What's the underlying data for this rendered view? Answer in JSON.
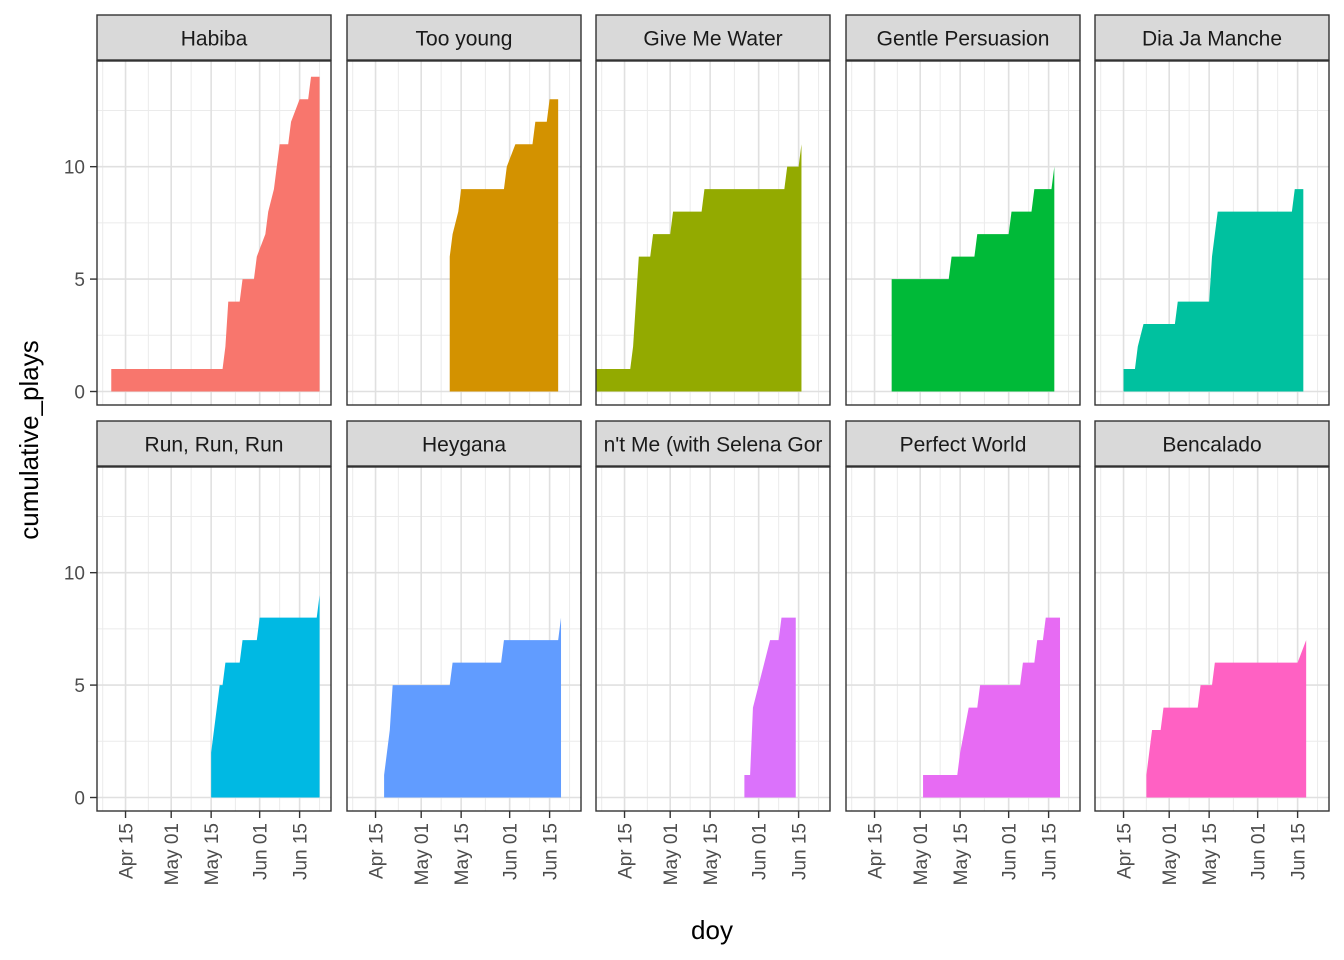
{
  "chart_data": {
    "type": "area",
    "xlabel": "doy",
    "ylabel": "cumulative_plays",
    "x_tick_labels": [
      "Apr 15",
      "May 01",
      "May 15",
      "Jun 01",
      "Jun 15"
    ],
    "x_tick_dates": [
      "2023-04-15",
      "2023-05-01",
      "2023-05-15",
      "2023-06-01",
      "2023-06-15"
    ],
    "xlim": [
      "2023-04-05",
      "2023-06-26"
    ],
    "y_ticks": [
      0,
      5,
      10
    ],
    "ylim": [
      -0.6,
      14.7
    ],
    "grid": true,
    "legend": "none",
    "facets": [
      {
        "title": "Habiba",
        "color": "#F8766D",
        "points": [
          [
            "2023-04-10",
            1
          ],
          [
            "2023-05-19",
            1
          ],
          [
            "2023-05-20",
            2
          ],
          [
            "2023-05-21",
            4
          ],
          [
            "2023-05-25",
            4
          ],
          [
            "2023-05-26",
            5
          ],
          [
            "2023-05-30",
            5
          ],
          [
            "2023-05-31",
            6
          ],
          [
            "2023-06-03",
            7
          ],
          [
            "2023-06-04",
            8
          ],
          [
            "2023-06-06",
            9
          ],
          [
            "2023-06-07",
            10
          ],
          [
            "2023-06-08",
            11
          ],
          [
            "2023-06-11",
            11
          ],
          [
            "2023-06-12",
            12
          ],
          [
            "2023-06-15",
            13
          ],
          [
            "2023-06-18",
            13
          ],
          [
            "2023-06-19",
            14
          ],
          [
            "2023-06-22",
            14
          ]
        ]
      },
      {
        "title": "Too young",
        "color": "#D39200",
        "points": [
          [
            "2023-05-11",
            6
          ],
          [
            "2023-05-12",
            7
          ],
          [
            "2023-05-13",
            7.5
          ],
          [
            "2023-05-14",
            8
          ],
          [
            "2023-05-15",
            9
          ],
          [
            "2023-05-30",
            9
          ],
          [
            "2023-05-31",
            10
          ],
          [
            "2023-06-03",
            11
          ],
          [
            "2023-06-09",
            11
          ],
          [
            "2023-06-10",
            12
          ],
          [
            "2023-06-14",
            12
          ],
          [
            "2023-06-15",
            13
          ],
          [
            "2023-06-17",
            13
          ],
          [
            "2023-06-18",
            13
          ]
        ]
      },
      {
        "title": "Give Me Water",
        "color": "#93AA00",
        "points": [
          [
            "2023-04-04",
            1
          ],
          [
            "2023-04-17",
            1
          ],
          [
            "2023-04-18",
            2
          ],
          [
            "2023-04-19",
            4
          ],
          [
            "2023-04-20",
            6
          ],
          [
            "2023-04-24",
            6
          ],
          [
            "2023-04-25",
            7
          ],
          [
            "2023-05-01",
            7
          ],
          [
            "2023-05-02",
            8
          ],
          [
            "2023-05-12",
            8
          ],
          [
            "2023-05-13",
            9
          ],
          [
            "2023-06-10",
            9
          ],
          [
            "2023-06-11",
            10
          ],
          [
            "2023-06-15",
            10
          ],
          [
            "2023-06-16",
            11
          ],
          [
            "2023-06-16",
            11
          ]
        ]
      },
      {
        "title": "Gentle Persuasion",
        "color": "#00BA38",
        "points": [
          [
            "2023-04-21",
            5
          ],
          [
            "2023-05-11",
            5
          ],
          [
            "2023-05-12",
            6
          ],
          [
            "2023-05-20",
            6
          ],
          [
            "2023-05-21",
            7
          ],
          [
            "2023-06-01",
            7
          ],
          [
            "2023-06-02",
            8
          ],
          [
            "2023-06-09",
            8
          ],
          [
            "2023-06-10",
            9
          ],
          [
            "2023-06-16",
            9
          ],
          [
            "2023-06-17",
            10
          ],
          [
            "2023-06-17",
            10
          ]
        ]
      },
      {
        "title": "Dia Ja Manche",
        "color": "#00C19F",
        "points": [
          [
            "2023-04-15",
            1
          ],
          [
            "2023-04-19",
            1
          ],
          [
            "2023-04-20",
            2
          ],
          [
            "2023-04-22",
            3
          ],
          [
            "2023-05-03",
            3
          ],
          [
            "2023-05-04",
            4
          ],
          [
            "2023-05-15",
            4
          ],
          [
            "2023-05-16",
            6
          ],
          [
            "2023-05-17",
            7
          ],
          [
            "2023-05-18",
            8
          ],
          [
            "2023-06-13",
            8
          ],
          [
            "2023-06-14",
            9
          ],
          [
            "2023-06-17",
            9
          ]
        ]
      },
      {
        "title": "Run, Run, Run",
        "color": "#00B9E3",
        "points": [
          [
            "2023-05-15",
            2
          ],
          [
            "2023-05-17",
            4
          ],
          [
            "2023-05-18",
            5
          ],
          [
            "2023-05-19",
            5
          ],
          [
            "2023-05-20",
            6
          ],
          [
            "2023-05-25",
            6
          ],
          [
            "2023-05-26",
            7
          ],
          [
            "2023-05-31",
            7
          ],
          [
            "2023-06-01",
            8
          ],
          [
            "2023-06-21",
            8
          ],
          [
            "2023-06-22",
            9
          ],
          [
            "2023-06-22",
            9
          ]
        ]
      },
      {
        "title": "Heygana",
        "color": "#619CFF",
        "points": [
          [
            "2023-04-18",
            1
          ],
          [
            "2023-04-20",
            3
          ],
          [
            "2023-04-21",
            5
          ],
          [
            "2023-05-11",
            5
          ],
          [
            "2023-05-12",
            6
          ],
          [
            "2023-05-29",
            6
          ],
          [
            "2023-05-30",
            7
          ],
          [
            "2023-06-18",
            7
          ],
          [
            "2023-06-19",
            8
          ],
          [
            "2023-06-19",
            8
          ]
        ]
      },
      {
        "title": "I Can't Get Enough (with Selena Gomez)",
        "title_shown": "n't Me (with Selena Gor",
        "color": "#DB72FB",
        "points": [
          [
            "2023-05-27",
            1
          ],
          [
            "2023-05-29",
            1
          ],
          [
            "2023-05-30",
            4
          ],
          [
            "2023-06-01",
            5
          ],
          [
            "2023-06-03",
            6
          ],
          [
            "2023-06-05",
            7
          ],
          [
            "2023-06-08",
            7
          ],
          [
            "2023-06-09",
            8
          ],
          [
            "2023-06-14",
            8
          ]
        ]
      },
      {
        "title": "Perfect World",
        "color": "#E76BF3",
        "points": [
          [
            "2023-05-02",
            1
          ],
          [
            "2023-05-14",
            1
          ],
          [
            "2023-05-15",
            2
          ],
          [
            "2023-05-18",
            4
          ],
          [
            "2023-05-21",
            4
          ],
          [
            "2023-05-22",
            5
          ],
          [
            "2023-06-05",
            5
          ],
          [
            "2023-06-06",
            6
          ],
          [
            "2023-06-10",
            6
          ],
          [
            "2023-06-11",
            7
          ],
          [
            "2023-06-13",
            7
          ],
          [
            "2023-06-14",
            8
          ],
          [
            "2023-06-19",
            8
          ]
        ]
      },
      {
        "title": "Bencalado",
        "color": "#FF61C3",
        "points": [
          [
            "2023-04-23",
            1
          ],
          [
            "2023-04-24",
            2
          ],
          [
            "2023-04-25",
            3
          ],
          [
            "2023-04-28",
            3
          ],
          [
            "2023-04-29",
            4
          ],
          [
            "2023-05-11",
            4
          ],
          [
            "2023-05-12",
            5
          ],
          [
            "2023-05-16",
            5
          ],
          [
            "2023-05-17",
            6
          ],
          [
            "2023-06-15",
            6
          ],
          [
            "2023-06-18",
            7
          ],
          [
            "2023-06-18",
            7
          ]
        ]
      }
    ]
  }
}
